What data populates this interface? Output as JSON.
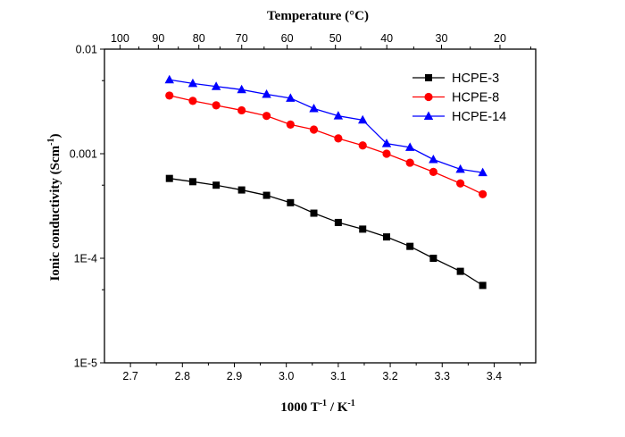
{
  "chart_data": {
    "type": "line",
    "xlabel": {
      "base": "1000 T",
      "sup1": "-1",
      "mid": " / K",
      "sup2": "-1"
    },
    "ylabel": {
      "base": "Ionic conductivity (Scm",
      "sup": "-1",
      "end": ")"
    },
    "top_axis_label": "Temperature (°C)",
    "xlim": [
      2.65,
      3.48
    ],
    "ylim": [
      1e-05,
      0.01
    ],
    "y_scale": "log",
    "x_ticks": [
      {
        "value": 2.7,
        "label": "2.7"
      },
      {
        "value": 2.8,
        "label": "2.8"
      },
      {
        "value": 2.9,
        "label": "2.9"
      },
      {
        "value": 3.0,
        "label": "3.0"
      },
      {
        "value": 3.1,
        "label": "3.1"
      },
      {
        "value": 3.2,
        "label": "3.2"
      },
      {
        "value": 3.3,
        "label": "3.3"
      },
      {
        "value": 3.4,
        "label": "3.4"
      }
    ],
    "y_ticks": [
      {
        "value": 0.01,
        "label": "0.01"
      },
      {
        "value": 0.001,
        "label": "0.001"
      },
      {
        "value": 0.0001,
        "label": "1E-4"
      },
      {
        "value": 1e-05,
        "label": "1E-5"
      }
    ],
    "top_ticks": [
      {
        "celsius": 100,
        "label": "100"
      },
      {
        "celsius": 90,
        "label": "90"
      },
      {
        "celsius": 80,
        "label": "80"
      },
      {
        "celsius": 70,
        "label": "70"
      },
      {
        "celsius": 60,
        "label": "60"
      },
      {
        "celsius": 50,
        "label": "50"
      },
      {
        "celsius": 40,
        "label": "40"
      },
      {
        "celsius": 30,
        "label": "30"
      },
      {
        "celsius": 20,
        "label": "20"
      }
    ],
    "x": [
      2.775,
      2.82,
      2.865,
      2.914,
      2.962,
      3.008,
      3.053,
      3.1,
      3.147,
      3.193,
      3.238,
      3.283,
      3.335,
      3.378
    ],
    "series": [
      {
        "name": "HCPE-3",
        "color": "#000000",
        "marker": "square",
        "values": [
          0.00058,
          0.00054,
          0.0005,
          0.00045,
          0.0004,
          0.00034,
          0.00027,
          0.00022,
          0.00019,
          0.00016,
          0.00013,
          0.0001,
          7.5e-05,
          5.5e-05
        ]
      },
      {
        "name": "HCPE-8",
        "color": "#ff0000",
        "marker": "circle",
        "values": [
          0.0036,
          0.0032,
          0.0029,
          0.0026,
          0.0023,
          0.0019,
          0.0017,
          0.0014,
          0.0012,
          0.001,
          0.00082,
          0.00067,
          0.00052,
          0.00041
        ]
      },
      {
        "name": "HCPE-14",
        "color": "#0000ff",
        "marker": "triangle",
        "values": [
          0.0051,
          0.0047,
          0.0044,
          0.0041,
          0.0037,
          0.0034,
          0.0027,
          0.0023,
          0.0021,
          0.00125,
          0.00115,
          0.00088,
          0.00071,
          0.00066
        ]
      }
    ],
    "legend": "top-right",
    "grid": false
  }
}
